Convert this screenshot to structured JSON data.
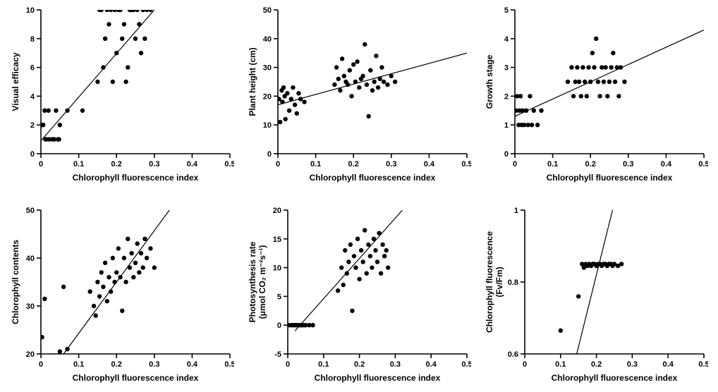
{
  "global": {
    "xlabel": "Chlorophyll fluorescence index",
    "background_color": "#ffffff",
    "axis_color": "#000000",
    "point_color": "#000000",
    "line_color": "#000000",
    "point_radius": 3.2,
    "line_width": 1.2,
    "axis_width": 1.6,
    "tick_len": 6,
    "xlim": [
      0,
      0.5
    ],
    "xticks": [
      0,
      0.1,
      0.2,
      0.3,
      0.4,
      0.5
    ],
    "label_fontsize": 12,
    "tick_fontsize": 11
  },
  "panels": [
    {
      "id": "visual_efficacy",
      "ylabel": "Visual efficacy",
      "ylabel2": "",
      "ylim": [
        0,
        10
      ],
      "yticks": [
        0,
        2,
        4,
        6,
        8,
        10
      ],
      "line": {
        "x1": 0.0,
        "y1": 0.9,
        "x2": 0.3,
        "y2": 10.0
      },
      "points": [
        [
          0.003,
          2.0
        ],
        [
          0.006,
          2.0
        ],
        [
          0.01,
          3.0
        ],
        [
          0.012,
          1.0
        ],
        [
          0.015,
          1.0
        ],
        [
          0.02,
          3.0
        ],
        [
          0.022,
          1.0
        ],
        [
          0.03,
          1.0
        ],
        [
          0.035,
          1.0
        ],
        [
          0.04,
          3.0
        ],
        [
          0.045,
          1.0
        ],
        [
          0.048,
          1.0
        ],
        [
          0.05,
          2.0
        ],
        [
          0.07,
          3.0
        ],
        [
          0.11,
          3.0
        ],
        [
          0.15,
          5.0
        ],
        [
          0.155,
          10.0
        ],
        [
          0.16,
          10.0
        ],
        [
          0.165,
          6.0
        ],
        [
          0.17,
          8.0
        ],
        [
          0.175,
          10.0
        ],
        [
          0.18,
          9.0
        ],
        [
          0.185,
          10.0
        ],
        [
          0.19,
          5.0
        ],
        [
          0.195,
          10.0
        ],
        [
          0.2,
          7.0
        ],
        [
          0.205,
          10.0
        ],
        [
          0.21,
          10.0
        ],
        [
          0.215,
          8.0
        ],
        [
          0.22,
          9.0
        ],
        [
          0.225,
          5.0
        ],
        [
          0.23,
          6.0
        ],
        [
          0.235,
          10.0
        ],
        [
          0.24,
          10.0
        ],
        [
          0.245,
          10.0
        ],
        [
          0.25,
          8.0
        ],
        [
          0.255,
          10.0
        ],
        [
          0.26,
          9.0
        ],
        [
          0.265,
          7.0
        ],
        [
          0.27,
          10.0
        ],
        [
          0.275,
          8.0
        ],
        [
          0.28,
          10.0
        ],
        [
          0.29,
          10.0
        ]
      ]
    },
    {
      "id": "plant_height",
      "ylabel": "Plant height (cm)",
      "ylabel2": "",
      "ylim": [
        0,
        50
      ],
      "yticks": [
        0,
        10,
        20,
        30,
        40,
        50
      ],
      "line": {
        "x1": 0.0,
        "y1": 17.0,
        "x2": 0.5,
        "y2": 35.0
      },
      "points": [
        [
          0.003,
          19
        ],
        [
          0.006,
          11
        ],
        [
          0.01,
          22
        ],
        [
          0.012,
          18
        ],
        [
          0.015,
          23
        ],
        [
          0.018,
          20
        ],
        [
          0.02,
          12
        ],
        [
          0.025,
          21
        ],
        [
          0.03,
          15
        ],
        [
          0.035,
          19
        ],
        [
          0.04,
          23
        ],
        [
          0.045,
          17
        ],
        [
          0.05,
          14
        ],
        [
          0.055,
          21
        ],
        [
          0.06,
          19
        ],
        [
          0.07,
          18
        ],
        [
          0.15,
          24
        ],
        [
          0.155,
          30
        ],
        [
          0.16,
          26
        ],
        [
          0.165,
          22
        ],
        [
          0.17,
          33
        ],
        [
          0.175,
          27
        ],
        [
          0.18,
          25
        ],
        [
          0.185,
          24
        ],
        [
          0.19,
          29
        ],
        [
          0.195,
          20
        ],
        [
          0.2,
          31
        ],
        [
          0.205,
          25
        ],
        [
          0.21,
          32
        ],
        [
          0.215,
          23
        ],
        [
          0.22,
          26
        ],
        [
          0.225,
          27
        ],
        [
          0.23,
          38
        ],
        [
          0.235,
          24
        ],
        [
          0.24,
          13
        ],
        [
          0.245,
          29
        ],
        [
          0.25,
          22
        ],
        [
          0.255,
          25
        ],
        [
          0.26,
          34
        ],
        [
          0.265,
          23
        ],
        [
          0.27,
          26
        ],
        [
          0.275,
          30
        ],
        [
          0.28,
          25
        ],
        [
          0.29,
          24
        ],
        [
          0.3,
          27
        ],
        [
          0.31,
          25
        ]
      ]
    },
    {
      "id": "growth_stage",
      "ylabel": "Growth stage",
      "ylabel2": "",
      "ylim": [
        0,
        5
      ],
      "yticks": [
        0,
        1,
        2,
        3,
        4,
        5
      ],
      "line": {
        "x1": 0.0,
        "y1": 1.3,
        "x2": 0.5,
        "y2": 4.3
      },
      "points": [
        [
          0.003,
          1.5
        ],
        [
          0.006,
          2.0
        ],
        [
          0.01,
          1.0
        ],
        [
          0.012,
          1.5
        ],
        [
          0.015,
          2.0
        ],
        [
          0.018,
          1.0
        ],
        [
          0.02,
          1.5
        ],
        [
          0.025,
          1.0
        ],
        [
          0.03,
          1.5
        ],
        [
          0.035,
          1.0
        ],
        [
          0.04,
          2.0
        ],
        [
          0.045,
          1.0
        ],
        [
          0.05,
          1.5
        ],
        [
          0.06,
          1.0
        ],
        [
          0.07,
          1.5
        ],
        [
          0.14,
          2.5
        ],
        [
          0.15,
          3.0
        ],
        [
          0.155,
          2.0
        ],
        [
          0.16,
          2.5
        ],
        [
          0.165,
          3.0
        ],
        [
          0.17,
          2.5
        ],
        [
          0.175,
          2.0
        ],
        [
          0.18,
          3.0
        ],
        [
          0.185,
          2.5
        ],
        [
          0.19,
          2.0
        ],
        [
          0.195,
          3.0
        ],
        [
          0.2,
          2.5
        ],
        [
          0.205,
          3.5
        ],
        [
          0.21,
          3.0
        ],
        [
          0.215,
          4.0
        ],
        [
          0.22,
          2.5
        ],
        [
          0.225,
          2.0
        ],
        [
          0.23,
          3.0
        ],
        [
          0.235,
          2.5
        ],
        [
          0.24,
          3.0
        ],
        [
          0.245,
          2.0
        ],
        [
          0.25,
          2.5
        ],
        [
          0.255,
          3.0
        ],
        [
          0.26,
          3.5
        ],
        [
          0.265,
          2.5
        ],
        [
          0.27,
          3.0
        ],
        [
          0.275,
          2.0
        ],
        [
          0.28,
          3.0
        ],
        [
          0.29,
          2.5
        ]
      ]
    },
    {
      "id": "chlorophyll_contents",
      "ylabel": "Chlorophyll contents",
      "ylabel2": "",
      "ylim": [
        20,
        50
      ],
      "yticks": [
        20,
        30,
        40,
        50
      ],
      "line": {
        "x1": 0.06,
        "y1": 20.0,
        "x2": 0.34,
        "y2": 50.0
      },
      "points": [
        [
          0.003,
          23.5
        ],
        [
          0.01,
          31.5
        ],
        [
          0.05,
          20.5
        ],
        [
          0.06,
          34
        ],
        [
          0.07,
          21
        ],
        [
          0.13,
          33
        ],
        [
          0.14,
          30
        ],
        [
          0.145,
          28
        ],
        [
          0.15,
          35
        ],
        [
          0.155,
          32
        ],
        [
          0.16,
          37
        ],
        [
          0.165,
          34
        ],
        [
          0.17,
          39
        ],
        [
          0.175,
          31
        ],
        [
          0.18,
          36
        ],
        [
          0.185,
          33
        ],
        [
          0.19,
          40
        ],
        [
          0.195,
          35
        ],
        [
          0.2,
          37
        ],
        [
          0.205,
          42
        ],
        [
          0.21,
          36
        ],
        [
          0.215,
          29
        ],
        [
          0.22,
          40
        ],
        [
          0.225,
          35
        ],
        [
          0.23,
          44
        ],
        [
          0.235,
          38
        ],
        [
          0.24,
          41
        ],
        [
          0.245,
          36
        ],
        [
          0.25,
          39
        ],
        [
          0.255,
          43
        ],
        [
          0.26,
          37
        ],
        [
          0.265,
          41
        ],
        [
          0.27,
          38
        ],
        [
          0.275,
          44
        ],
        [
          0.28,
          40
        ],
        [
          0.29,
          42
        ],
        [
          0.3,
          38
        ]
      ]
    },
    {
      "id": "photosynthesis_rate",
      "ylabel": "Photosynthesis rate",
      "ylabel2": "(μmol CO₂ m⁻²s⁻¹)",
      "ylim": [
        -5,
        20
      ],
      "yticks": [
        -5,
        0,
        5,
        10,
        15,
        20
      ],
      "line": {
        "x1": 0.02,
        "y1": -1.0,
        "x2": 0.32,
        "y2": 20.0
      },
      "points": [
        [
          0.003,
          0.0
        ],
        [
          0.01,
          0.0
        ],
        [
          0.015,
          0.0
        ],
        [
          0.02,
          0.0
        ],
        [
          0.025,
          0.0
        ],
        [
          0.03,
          0.0
        ],
        [
          0.035,
          0.0
        ],
        [
          0.04,
          0.0
        ],
        [
          0.045,
          0.0
        ],
        [
          0.05,
          0.0
        ],
        [
          0.06,
          0.0
        ],
        [
          0.07,
          0.0
        ],
        [
          0.14,
          6
        ],
        [
          0.15,
          10
        ],
        [
          0.155,
          7
        ],
        [
          0.16,
          13
        ],
        [
          0.165,
          9
        ],
        [
          0.17,
          11
        ],
        [
          0.175,
          14
        ],
        [
          0.18,
          2.5
        ],
        [
          0.185,
          12
        ],
        [
          0.19,
          10
        ],
        [
          0.195,
          15
        ],
        [
          0.2,
          8
        ],
        [
          0.205,
          13
        ],
        [
          0.21,
          11
        ],
        [
          0.215,
          16.5
        ],
        [
          0.22,
          9
        ],
        [
          0.225,
          14
        ],
        [
          0.23,
          12
        ],
        [
          0.235,
          10
        ],
        [
          0.24,
          15
        ],
        [
          0.245,
          13
        ],
        [
          0.25,
          11
        ],
        [
          0.255,
          16
        ],
        [
          0.26,
          9
        ],
        [
          0.265,
          14
        ],
        [
          0.27,
          12
        ],
        [
          0.275,
          13
        ],
        [
          0.28,
          10
        ]
      ]
    },
    {
      "id": "chlorophyll_fluorescence",
      "ylabel": "Chlorophyll fluorescence",
      "ylabel2": "(Fv/Fm)",
      "ylim": [
        0.6,
        1.0
      ],
      "yticks": [
        0.6,
        0.8,
        1.0
      ],
      "line": {
        "x1": 0.145,
        "y1": 0.6,
        "x2": 0.245,
        "y2": 1.0
      },
      "points": [
        [
          0.1,
          0.665
        ],
        [
          0.15,
          0.76
        ],
        [
          0.16,
          0.85
        ],
        [
          0.165,
          0.84
        ],
        [
          0.17,
          0.85
        ],
        [
          0.175,
          0.845
        ],
        [
          0.18,
          0.85
        ],
        [
          0.185,
          0.845
        ],
        [
          0.19,
          0.85
        ],
        [
          0.195,
          0.85
        ],
        [
          0.2,
          0.845
        ],
        [
          0.205,
          0.85
        ],
        [
          0.21,
          0.85
        ],
        [
          0.215,
          0.845
        ],
        [
          0.22,
          0.85
        ],
        [
          0.225,
          0.85
        ],
        [
          0.23,
          0.845
        ],
        [
          0.235,
          0.85
        ],
        [
          0.24,
          0.85
        ],
        [
          0.245,
          0.845
        ],
        [
          0.25,
          0.85
        ],
        [
          0.26,
          0.845
        ],
        [
          0.27,
          0.85
        ]
      ]
    }
  ]
}
